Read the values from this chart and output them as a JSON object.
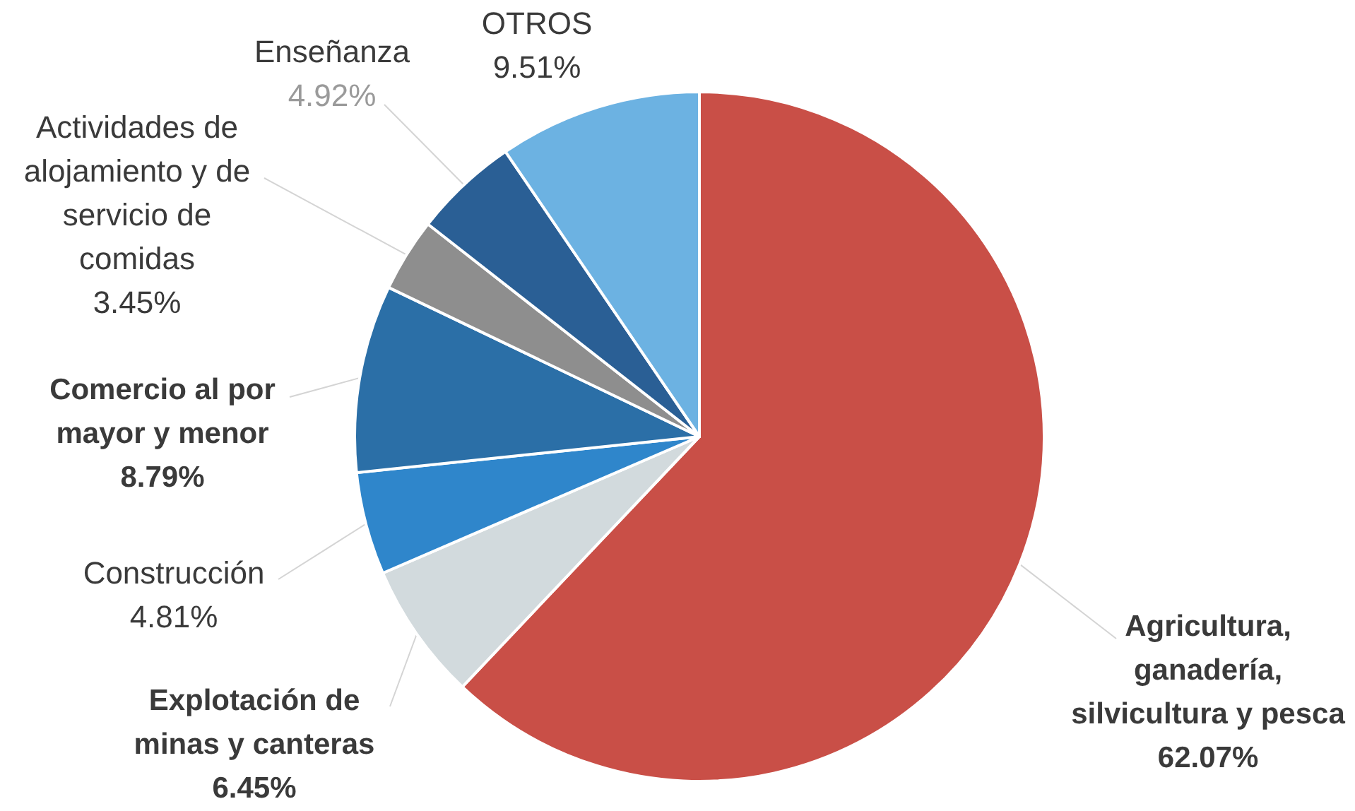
{
  "chart_data": {
    "type": "pie",
    "categories": [
      "Agricultura, ganadería, silvicultura y pesca",
      "Explotación de minas y canteras",
      "Construcción",
      "Comercio al por mayor y menor",
      "Actividades de alojamiento y de servicio de comidas",
      "Enseñanza",
      "OTROS"
    ],
    "values": [
      62.07,
      6.45,
      4.81,
      8.79,
      3.45,
      4.92,
      9.51
    ],
    "value_labels": [
      "62.07%",
      "6.45%",
      "4.81%",
      "8.79%",
      "3.45%",
      "4.92%",
      "9.51%"
    ],
    "colors": [
      "#c94f47",
      "#d2dadd",
      "#2f86cb",
      "#2b6fa7",
      "#8e8e8e",
      "#2a5f95",
      "#6cb2e2"
    ]
  }
}
